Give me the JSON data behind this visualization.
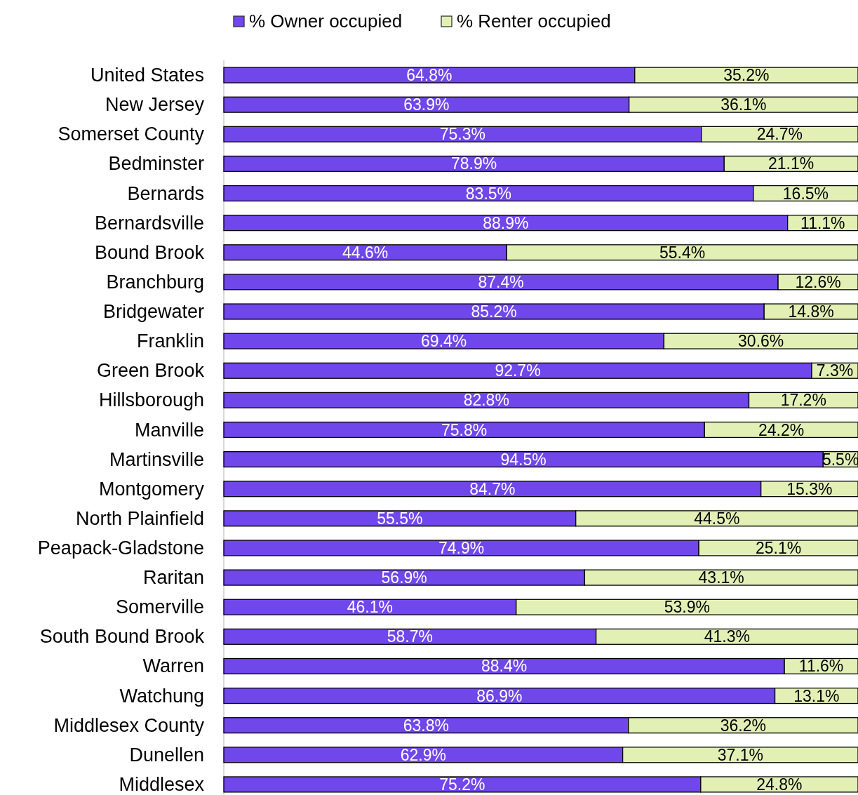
{
  "chart_data": {
    "type": "bar",
    "orientation": "horizontal",
    "stacked": true,
    "legend": "top",
    "grid": false,
    "categories": [
      "United States",
      "New Jersey",
      "Somerset County",
      "Bedminster",
      "Bernards",
      "Bernardsville",
      "Bound Brook",
      "Branchburg",
      "Bridgewater",
      "Franklin",
      "Green Brook",
      "Hillsborough",
      "Manville",
      "Martinsville",
      "Montgomery",
      "North Plainfield",
      "Peapack-Gladstone",
      "Raritan",
      "Somerville",
      "South Bound Brook",
      "Warren",
      "Watchung",
      "Middlesex County",
      "Dunellen",
      "Middlesex"
    ],
    "series": [
      {
        "name": "% Owner occupied",
        "color": "#7047eb",
        "values": [
          64.8,
          63.9,
          75.3,
          78.9,
          83.5,
          88.9,
          44.6,
          87.4,
          85.2,
          69.4,
          92.7,
          82.8,
          75.8,
          94.5,
          84.7,
          55.5,
          74.9,
          56.9,
          46.1,
          58.7,
          88.4,
          86.9,
          63.8,
          62.9,
          75.2
        ],
        "value_labels": [
          "64.8%",
          "63.9%",
          "75.3%",
          "78.9%",
          "83.5%",
          "88.9%",
          "44.6%",
          "87.4%",
          "85.2%",
          "69.4%",
          "92.7%",
          "82.8%",
          "75.8%",
          "94.5%",
          "84.7%",
          "55.5%",
          "74.9%",
          "56.9%",
          "46.1%",
          "58.7%",
          "88.4%",
          "86.9%",
          "63.8%",
          "62.9%",
          "75.2%"
        ]
      },
      {
        "name": "% Renter occupied",
        "color": "#e2f0b6",
        "values": [
          35.2,
          36.1,
          24.7,
          21.1,
          16.5,
          11.1,
          55.4,
          12.6,
          14.8,
          30.6,
          7.3,
          17.2,
          24.2,
          5.5,
          15.3,
          44.5,
          25.1,
          43.1,
          53.9,
          41.3,
          11.6,
          13.1,
          36.2,
          37.1,
          24.8
        ],
        "value_labels": [
          "35.2%",
          "36.1%",
          "24.7%",
          "21.1%",
          "16.5%",
          "11.1%",
          "55.4%",
          "12.6%",
          "14.8%",
          "30.6%",
          "7.3%",
          "17.2%",
          "24.2%",
          "5.5%",
          "15.3%",
          "44.5%",
          "25.1%",
          "43.1%",
          "53.9%",
          "41.3%",
          "11.6%",
          "13.1%",
          "36.2%",
          "37.1%",
          "24.8%"
        ]
      }
    ]
  }
}
